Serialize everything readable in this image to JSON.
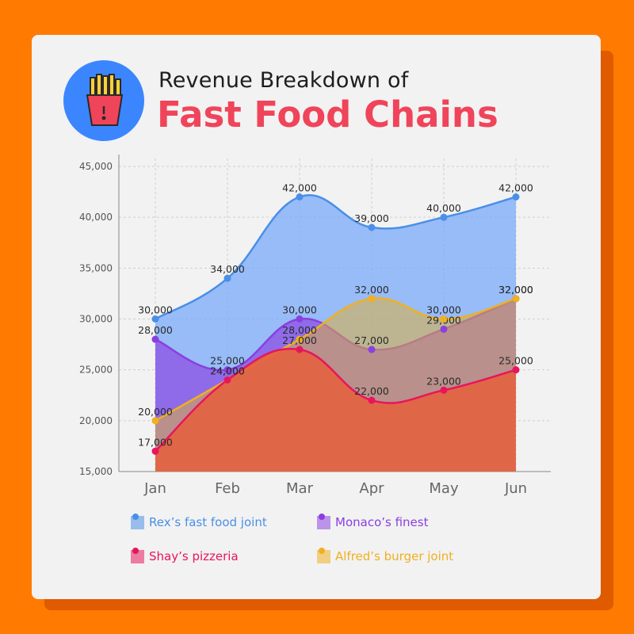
{
  "title": {
    "line1": "Revenue Breakdown of",
    "line2": "Fast Food Chains"
  },
  "logo_icon": "french-fries-icon",
  "colors": {
    "background": "#ff7a00",
    "title_accent": "#f0445a",
    "rex": "#4a8fe8",
    "monaco": "#8a3fe0",
    "shay": "#e8155c",
    "alfred": "#f0b020"
  },
  "chart_data": {
    "type": "area",
    "categories": [
      "Jan",
      "Feb",
      "Mar",
      "Apr",
      "May",
      "Jun"
    ],
    "ylim": [
      15000,
      45000
    ],
    "yticks": [
      "15,000",
      "20,000",
      "25,000",
      "30,000",
      "35,000",
      "40,000",
      "45,000"
    ],
    "grid": true,
    "legend_position": "bottom",
    "series": [
      {
        "name": "Rex’s fast food joint",
        "values": [
          30000,
          34000,
          42000,
          39000,
          40000,
          42000
        ],
        "labels": [
          "30,000",
          "34,000",
          "42,000",
          "39,000",
          "40,000",
          "42,000"
        ]
      },
      {
        "name": "Monaco’s finest",
        "values": [
          28000,
          25000,
          30000,
          27000,
          29000,
          32000
        ],
        "labels": [
          "28,000",
          "25,000",
          "30,000",
          "27,000",
          "29,000",
          "32,000"
        ]
      },
      {
        "name": "Alfred’s burger joint",
        "values": [
          20000,
          24000,
          28000,
          32000,
          30000,
          32000
        ],
        "labels": [
          "20,000",
          "24,000",
          "28,000",
          "32,000",
          "30,000",
          "32,000"
        ]
      },
      {
        "name": "Shay’s pizzeria",
        "values": [
          17000,
          24000,
          27000,
          22000,
          23000,
          25000
        ],
        "labels": [
          "17,000",
          "24,000",
          "27,000",
          "22,000",
          "23,000",
          "25,000"
        ]
      }
    ]
  },
  "legend": [
    {
      "label": "Rex’s fast food joint",
      "color": "#4a8fe8"
    },
    {
      "label": "Monaco’s finest",
      "color": "#8a3fe0"
    },
    {
      "label": "Shay’s pizzeria",
      "color": "#e8155c"
    },
    {
      "label": "Alfred’s burger joint",
      "color": "#f0b020"
    }
  ]
}
